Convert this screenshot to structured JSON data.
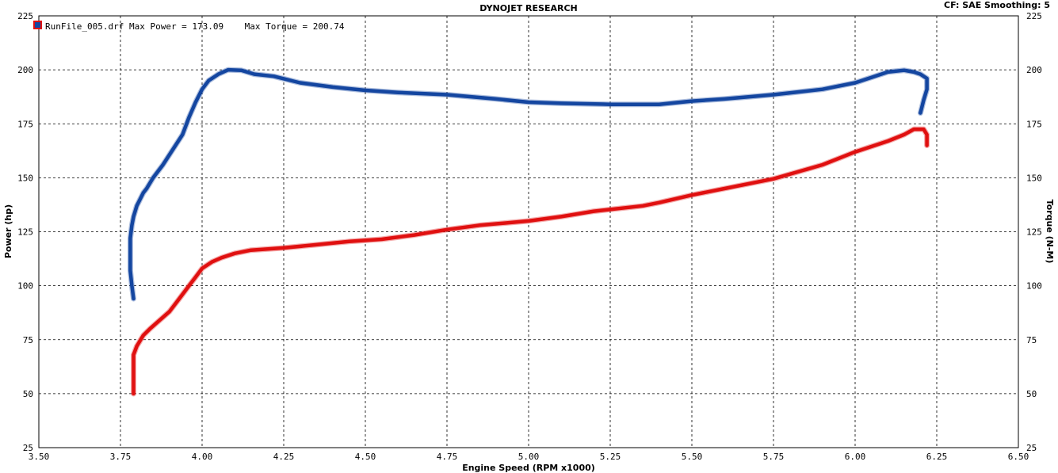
{
  "chart_data": {
    "type": "line",
    "title": "DYNOJET RESEARCH",
    "header_right": "CF: SAE  Smoothing: 5",
    "legend_text": "RunFile_005.drf Max Power = 173.09    Max Torque = 200.74",
    "xlabel": "Engine Speed (RPM x1000)",
    "ylabel_left": "Power (hp)",
    "ylabel_right": "Torque (N-M)",
    "xlim": [
      3.5,
      6.5
    ],
    "ylim": [
      25,
      225
    ],
    "x_ticks": [
      "3.50",
      "3.75",
      "4.00",
      "4.25",
      "4.50",
      "4.75",
      "5.00",
      "5.25",
      "5.50",
      "5.75",
      "6.00",
      "6.25",
      "6.50"
    ],
    "y_ticks": [
      "25",
      "50",
      "75",
      "100",
      "125",
      "150",
      "175",
      "200",
      "225"
    ],
    "grid": true,
    "colors": {
      "torque": "#1446a0",
      "power": "#e01010",
      "background": "#ffffff",
      "grid": "#000000"
    },
    "series": [
      {
        "color": "#1446a0",
        "points": [
          [
            3.79,
            94
          ],
          [
            3.785,
            100
          ],
          [
            3.78,
            107
          ],
          [
            3.78,
            115
          ],
          [
            3.78,
            122
          ],
          [
            3.785,
            128
          ],
          [
            3.79,
            132
          ],
          [
            3.8,
            137
          ],
          [
            3.81,
            140
          ],
          [
            3.82,
            143
          ],
          [
            3.83,
            145
          ],
          [
            3.85,
            150
          ],
          [
            3.88,
            156
          ],
          [
            3.91,
            163
          ],
          [
            3.94,
            170
          ],
          [
            3.96,
            178
          ],
          [
            3.98,
            185
          ],
          [
            4.0,
            191
          ],
          [
            4.02,
            195
          ],
          [
            4.05,
            198
          ],
          [
            4.08,
            200
          ],
          [
            4.12,
            199.8
          ],
          [
            4.16,
            198
          ],
          [
            4.22,
            197
          ],
          [
            4.3,
            194
          ],
          [
            4.4,
            192
          ],
          [
            4.5,
            190.5
          ],
          [
            4.6,
            189.5
          ],
          [
            4.75,
            188.5
          ],
          [
            4.9,
            186.5
          ],
          [
            5.0,
            185
          ],
          [
            5.1,
            184.5
          ],
          [
            5.25,
            184
          ],
          [
            5.4,
            184
          ],
          [
            5.5,
            185.5
          ],
          [
            5.6,
            186.5
          ],
          [
            5.75,
            188.5
          ],
          [
            5.9,
            191
          ],
          [
            6.0,
            194
          ],
          [
            6.05,
            196.5
          ],
          [
            6.1,
            199
          ],
          [
            6.15,
            199.8
          ],
          [
            6.18,
            199
          ],
          [
            6.2,
            198
          ],
          [
            6.22,
            196
          ],
          [
            6.22,
            191
          ],
          [
            6.21,
            186
          ],
          [
            6.2,
            180
          ]
        ]
      },
      {
        "color": "#e01010",
        "points": [
          [
            3.79,
            50
          ],
          [
            3.79,
            56
          ],
          [
            3.79,
            62
          ],
          [
            3.79,
            68
          ],
          [
            3.8,
            72
          ],
          [
            3.82,
            77
          ],
          [
            3.84,
            80
          ],
          [
            3.87,
            84
          ],
          [
            3.9,
            88
          ],
          [
            3.93,
            94
          ],
          [
            3.96,
            100
          ],
          [
            3.98,
            104
          ],
          [
            4.0,
            108
          ],
          [
            4.03,
            111
          ],
          [
            4.06,
            113
          ],
          [
            4.1,
            115
          ],
          [
            4.15,
            116.5
          ],
          [
            4.25,
            117.5
          ],
          [
            4.35,
            119
          ],
          [
            4.45,
            120.5
          ],
          [
            4.55,
            121.5
          ],
          [
            4.65,
            123.5
          ],
          [
            4.75,
            126
          ],
          [
            4.85,
            128
          ],
          [
            5.0,
            130
          ],
          [
            5.1,
            132
          ],
          [
            5.2,
            134.5
          ],
          [
            5.35,
            137
          ],
          [
            5.4,
            138.5
          ],
          [
            5.5,
            142
          ],
          [
            5.6,
            145
          ],
          [
            5.75,
            149.5
          ],
          [
            5.9,
            156
          ],
          [
            6.0,
            162
          ],
          [
            6.1,
            167
          ],
          [
            6.15,
            170
          ],
          [
            6.18,
            172.5
          ],
          [
            6.21,
            172.5
          ],
          [
            6.22,
            170
          ],
          [
            6.22,
            165
          ]
        ]
      }
    ]
  }
}
